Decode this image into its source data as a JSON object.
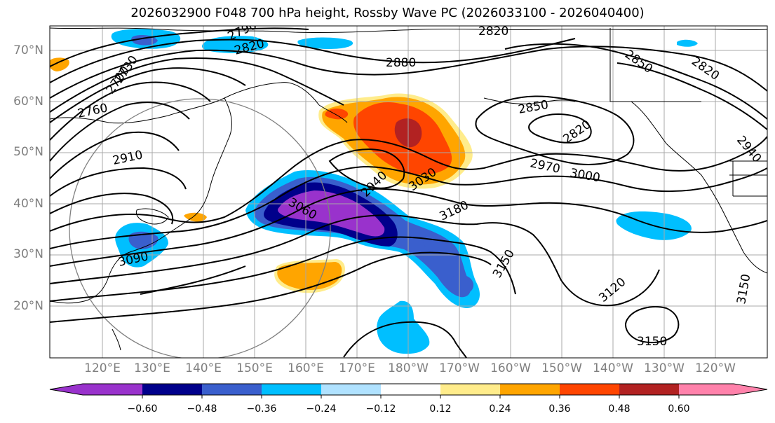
{
  "title": "2026032900 F048 700 hPa height, Rossby Wave PC (2026033100 - 2026040400)",
  "lat_labels": [
    "70°N",
    "60°N",
    "50°N",
    "40°N",
    "30°N",
    "20°N"
  ],
  "lon_labels": [
    "120°E",
    "130°E",
    "140°E",
    "150°E",
    "160°E",
    "170°E",
    "180°W",
    "170°W",
    "160°W",
    "150°W",
    "140°W",
    "130°W",
    "120°W"
  ],
  "contour_labels": [
    "2820",
    "2790",
    "2820",
    "2880",
    "2850",
    "2820",
    "2820",
    "2850",
    "2700",
    "2730",
    "2760",
    "2910",
    "2940",
    "3030",
    "2970",
    "3000",
    "2940",
    "3060",
    "3180",
    "3150",
    "3090",
    "3120",
    "3150",
    "3150"
  ],
  "colorbar": {
    "ticks": [
      "−0.60",
      "−0.48",
      "−0.36",
      "−0.24",
      "−0.12",
      "0.12",
      "0.24",
      "0.36",
      "0.48",
      "0.60"
    ],
    "colors": [
      "#9932cc",
      "#00008b",
      "#3a5fcd",
      "#00bfff",
      "#b0e2ff",
      "#ffffff",
      "#ffec8b",
      "#ffa500",
      "#ff4500",
      "#b22222",
      "#ff82ab"
    ]
  }
}
